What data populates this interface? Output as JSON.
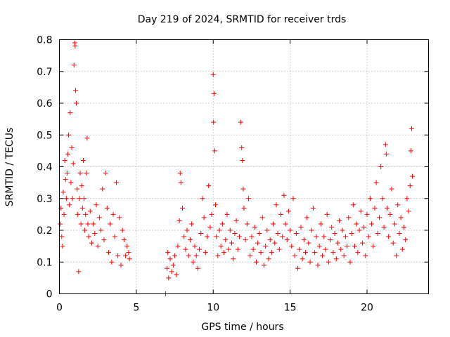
{
  "chart_data": {
    "type": "scatter",
    "title": "Day 219 of 2024, SRMTID for receiver trds",
    "xlabel": "GPS time / hours",
    "ylabel": "SRMTID / TECUs",
    "xlim": [
      0,
      24.0
    ],
    "ylim": [
      0,
      0.8
    ],
    "xticks": [
      0,
      5,
      10,
      15,
      20
    ],
    "xtick_labels": [
      "0",
      "5",
      "10",
      "15",
      "20"
    ],
    "yticks": [
      0,
      0.1,
      0.2,
      0.3,
      0.4,
      0.5,
      0.6,
      0.7,
      0.8
    ],
    "ytick_labels": [
      "0",
      "0.1",
      "0.2",
      "0.3",
      "0.4",
      "0.5",
      "0.6",
      "0.7",
      "0.8"
    ],
    "grid": true,
    "marker": "+",
    "marker_color": "#ff0000",
    "series": [
      {
        "name": "SRMTID",
        "points": [
          [
            0.05,
            0.22
          ],
          [
            0.1,
            0.27
          ],
          [
            0.15,
            0.18
          ],
          [
            0.2,
            0.15
          ],
          [
            0.25,
            0.32
          ],
          [
            0.3,
            0.25
          ],
          [
            0.35,
            0.42
          ],
          [
            0.4,
            0.36
          ],
          [
            0.45,
            0.3
          ],
          [
            0.5,
            0.38
          ],
          [
            0.55,
            0.44
          ],
          [
            0.6,
            0.5
          ],
          [
            0.65,
            0.28
          ],
          [
            0.7,
            0.57
          ],
          [
            0.75,
            0.35
          ],
          [
            0.8,
            0.46
          ],
          [
            0.85,
            0.3
          ],
          [
            0.9,
            0.41
          ],
          [
            0.95,
            0.72
          ],
          [
            1.0,
            0.79
          ],
          [
            1.02,
            0.78
          ],
          [
            1.05,
            0.64
          ],
          [
            1.1,
            0.6
          ],
          [
            1.15,
            0.33
          ],
          [
            1.2,
            0.25
          ],
          [
            1.25,
            0.07
          ],
          [
            1.3,
            0.3
          ],
          [
            1.35,
            0.38
          ],
          [
            1.4,
            0.22
          ],
          [
            1.45,
            0.34
          ],
          [
            1.5,
            0.27
          ],
          [
            1.55,
            0.42
          ],
          [
            1.6,
            0.3
          ],
          [
            1.65,
            0.2
          ],
          [
            1.7,
            0.25
          ],
          [
            1.75,
            0.38
          ],
          [
            1.8,
            0.49
          ],
          [
            1.85,
            0.22
          ],
          [
            1.9,
            0.18
          ],
          [
            2.0,
            0.26
          ],
          [
            2.1,
            0.16
          ],
          [
            2.2,
            0.22
          ],
          [
            2.3,
            0.19
          ],
          [
            2.4,
            0.28
          ],
          [
            2.5,
            0.15
          ],
          [
            2.6,
            0.24
          ],
          [
            2.7,
            0.2
          ],
          [
            2.8,
            0.33
          ],
          [
            2.9,
            0.17
          ],
          [
            3.0,
            0.38
          ],
          [
            3.1,
            0.27
          ],
          [
            3.2,
            0.13
          ],
          [
            3.3,
            0.22
          ],
          [
            3.4,
            0.1
          ],
          [
            3.5,
            0.25
          ],
          [
            3.6,
            0.18
          ],
          [
            3.7,
            0.35
          ],
          [
            3.8,
            0.12
          ],
          [
            3.9,
            0.24
          ],
          [
            4.0,
            0.09
          ],
          [
            4.1,
            0.2
          ],
          [
            4.2,
            0.17
          ],
          [
            4.3,
            0.12
          ],
          [
            4.4,
            0.15
          ],
          [
            4.5,
            0.13
          ],
          [
            4.55,
            0.11
          ],
          [
            6.9,
            0.0
          ],
          [
            7.0,
            0.08
          ],
          [
            7.05,
            0.13
          ],
          [
            7.1,
            0.05
          ],
          [
            7.2,
            0.11
          ],
          [
            7.3,
            0.07
          ],
          [
            7.4,
            0.09
          ],
          [
            7.5,
            0.12
          ],
          [
            7.6,
            0.06
          ],
          [
            7.7,
            0.15
          ],
          [
            7.8,
            0.23
          ],
          [
            7.85,
            0.38
          ],
          [
            7.9,
            0.35
          ],
          [
            8.0,
            0.27
          ],
          [
            8.1,
            0.18
          ],
          [
            8.2,
            0.14
          ],
          [
            8.3,
            0.2
          ],
          [
            8.4,
            0.12
          ],
          [
            8.5,
            0.17
          ],
          [
            8.6,
            0.22
          ],
          [
            8.7,
            0.1
          ],
          [
            8.8,
            0.15
          ],
          [
            8.9,
            0.12
          ],
          [
            9.0,
            0.08
          ],
          [
            9.1,
            0.14
          ],
          [
            9.2,
            0.19
          ],
          [
            9.3,
            0.3
          ],
          [
            9.4,
            0.24
          ],
          [
            9.5,
            0.13
          ],
          [
            9.6,
            0.18
          ],
          [
            9.7,
            0.34
          ],
          [
            9.8,
            0.21
          ],
          [
            9.9,
            0.25
          ],
          [
            10.0,
            0.69
          ],
          [
            10.02,
            0.54
          ],
          [
            10.05,
            0.63
          ],
          [
            10.1,
            0.45
          ],
          [
            10.15,
            0.28
          ],
          [
            10.2,
            0.18
          ],
          [
            10.3,
            0.12
          ],
          [
            10.4,
            0.2
          ],
          [
            10.5,
            0.15
          ],
          [
            10.6,
            0.22
          ],
          [
            10.7,
            0.13
          ],
          [
            10.8,
            0.17
          ],
          [
            10.9,
            0.25
          ],
          [
            11.0,
            0.14
          ],
          [
            11.1,
            0.2
          ],
          [
            11.2,
            0.16
          ],
          [
            11.3,
            0.11
          ],
          [
            11.4,
            0.19
          ],
          [
            11.5,
            0.23
          ],
          [
            11.6,
            0.14
          ],
          [
            11.7,
            0.18
          ],
          [
            11.8,
            0.54
          ],
          [
            11.85,
            0.46
          ],
          [
            11.9,
            0.42
          ],
          [
            11.95,
            0.33
          ],
          [
            12.0,
            0.27
          ],
          [
            12.1,
            0.17
          ],
          [
            12.2,
            0.22
          ],
          [
            12.3,
            0.3
          ],
          [
            12.4,
            0.12
          ],
          [
            12.5,
            0.18
          ],
          [
            12.6,
            0.14
          ],
          [
            12.7,
            0.21
          ],
          [
            12.8,
            0.1
          ],
          [
            12.9,
            0.16
          ],
          [
            13.0,
            0.19
          ],
          [
            13.1,
            0.13
          ],
          [
            13.2,
            0.24
          ],
          [
            13.3,
            0.09
          ],
          [
            13.4,
            0.15
          ],
          [
            13.5,
            0.2
          ],
          [
            13.6,
            0.11
          ],
          [
            13.7,
            0.17
          ],
          [
            13.8,
            0.13
          ],
          [
            13.9,
            0.22
          ],
          [
            14.0,
            0.16
          ],
          [
            14.1,
            0.28
          ],
          [
            14.2,
            0.19
          ],
          [
            14.3,
            0.14
          ],
          [
            14.4,
            0.25
          ],
          [
            14.5,
            0.18
          ],
          [
            14.6,
            0.31
          ],
          [
            14.7,
            0.22
          ],
          [
            14.8,
            0.17
          ],
          [
            14.9,
            0.26
          ],
          [
            15.0,
            0.2
          ],
          [
            15.1,
            0.15
          ],
          [
            15.2,
            0.3
          ],
          [
            15.3,
            0.12
          ],
          [
            15.4,
            0.19
          ],
          [
            15.5,
            0.08
          ],
          [
            15.6,
            0.14
          ],
          [
            15.7,
            0.21
          ],
          [
            15.8,
            0.11
          ],
          [
            15.9,
            0.17
          ],
          [
            16.0,
            0.13
          ],
          [
            16.1,
            0.24
          ],
          [
            16.2,
            0.16
          ],
          [
            16.3,
            0.1
          ],
          [
            16.4,
            0.2
          ],
          [
            16.5,
            0.27
          ],
          [
            16.6,
            0.13
          ],
          [
            16.7,
            0.18
          ],
          [
            16.8,
            0.09
          ],
          [
            16.9,
            0.15
          ],
          [
            17.0,
            0.22
          ],
          [
            17.1,
            0.12
          ],
          [
            17.2,
            0.18
          ],
          [
            17.3,
            0.14
          ],
          [
            17.4,
            0.25
          ],
          [
            17.5,
            0.1
          ],
          [
            17.6,
            0.17
          ],
          [
            17.7,
            0.21
          ],
          [
            17.8,
            0.13
          ],
          [
            17.9,
            0.19
          ],
          [
            18.0,
            0.11
          ],
          [
            18.1,
            0.16
          ],
          [
            18.2,
            0.23
          ],
          [
            18.3,
            0.14
          ],
          [
            18.4,
            0.2
          ],
          [
            18.5,
            0.12
          ],
          [
            18.6,
            0.18
          ],
          [
            18.7,
            0.15
          ],
          [
            18.8,
            0.24
          ],
          [
            18.9,
            0.1
          ],
          [
            19.0,
            0.19
          ],
          [
            19.1,
            0.28
          ],
          [
            19.2,
            0.15
          ],
          [
            19.3,
            0.22
          ],
          [
            19.4,
            0.13
          ],
          [
            19.5,
            0.2
          ],
          [
            19.6,
            0.26
          ],
          [
            19.7,
            0.16
          ],
          [
            19.8,
            0.21
          ],
          [
            19.9,
            0.12
          ],
          [
            20.0,
            0.25
          ],
          [
            20.1,
            0.18
          ],
          [
            20.2,
            0.3
          ],
          [
            20.3,
            0.22
          ],
          [
            20.4,
            0.15
          ],
          [
            20.5,
            0.27
          ],
          [
            20.6,
            0.35
          ],
          [
            20.7,
            0.19
          ],
          [
            20.8,
            0.24
          ],
          [
            20.9,
            0.4
          ],
          [
            21.0,
            0.3
          ],
          [
            21.1,
            0.21
          ],
          [
            21.2,
            0.47
          ],
          [
            21.25,
            0.44
          ],
          [
            21.3,
            0.27
          ],
          [
            21.4,
            0.18
          ],
          [
            21.5,
            0.25
          ],
          [
            21.6,
            0.33
          ],
          [
            21.7,
            0.16
          ],
          [
            21.8,
            0.22
          ],
          [
            21.9,
            0.12
          ],
          [
            22.0,
            0.28
          ],
          [
            22.1,
            0.19
          ],
          [
            22.2,
            0.24
          ],
          [
            22.3,
            0.14
          ],
          [
            22.4,
            0.21
          ],
          [
            22.5,
            0.17
          ],
          [
            22.6,
            0.3
          ],
          [
            22.7,
            0.26
          ],
          [
            22.8,
            0.34
          ],
          [
            22.85,
            0.45
          ],
          [
            22.9,
            0.52
          ],
          [
            22.95,
            0.37
          ]
        ]
      }
    ]
  }
}
